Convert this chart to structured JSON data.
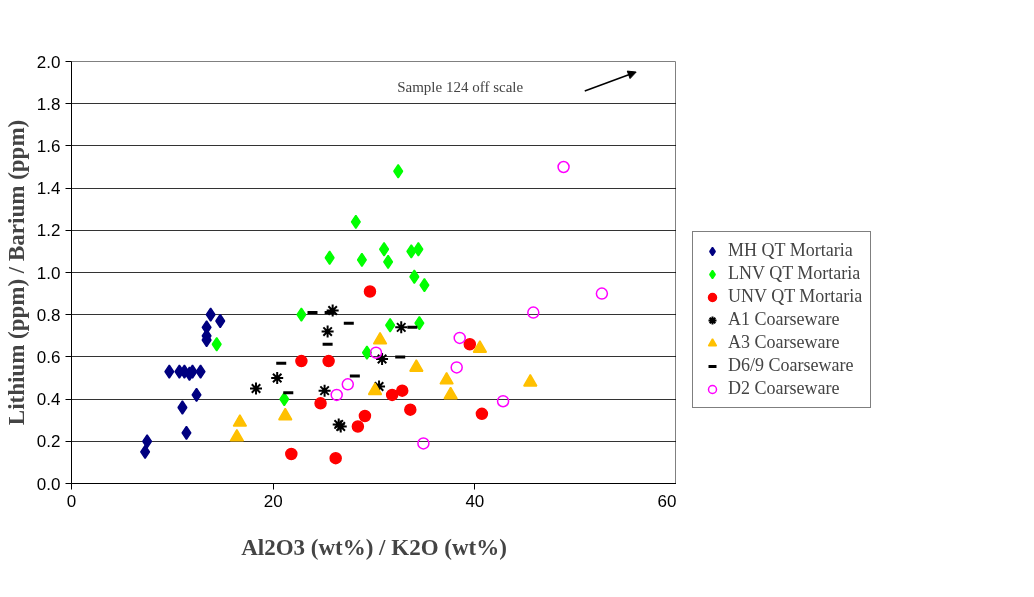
{
  "chart_data": {
    "type": "scatter",
    "xlabel": "Al2O3 (wt%) / K2O (wt%)",
    "ylabel": "Lithium (ppm) / Barium (ppm)",
    "xlim": [
      0,
      60
    ],
    "xticks": [
      0,
      20,
      40,
      60
    ],
    "ylim": [
      0,
      2.0
    ],
    "yticks": [
      {
        "value": 0,
        "label": "0.0"
      },
      {
        "value": 0.2,
        "label": "0.2"
      },
      {
        "value": 0.4,
        "label": "0.4"
      },
      {
        "value": 0.6,
        "label": "0.6"
      },
      {
        "value": 0.8,
        "label": "0.8"
      },
      {
        "value": 1.0,
        "label": "1.0"
      },
      {
        "value": 1.2,
        "label": "1.2"
      },
      {
        "value": 1.4,
        "label": "1.4"
      },
      {
        "value": 1.6,
        "label": "1.6"
      },
      {
        "value": 1.8,
        "label": "1.8"
      },
      {
        "value": 2.0,
        "label": "2.0"
      }
    ],
    "grid": "y",
    "legend": "right",
    "annotations": [
      "Sample 124 off scale"
    ],
    "series": [
      {
        "name": "MH QT Mortaria",
        "color": "#000080",
        "marker": "diamond",
        "x": [
          13.8,
          14.75,
          13.4,
          13.4,
          13.4,
          9.7,
          10.7,
          11.2,
          11.7,
          12.0,
          12.8,
          12.4,
          11.0,
          11.4,
          7.5,
          7.3
        ],
        "values": [
          0.8,
          0.77,
          0.74,
          0.7,
          0.68,
          0.53,
          0.53,
          0.53,
          0.52,
          0.53,
          0.53,
          0.42,
          0.36,
          0.24,
          0.2,
          0.15
        ]
      },
      {
        "name": "LNV QT Mortaria",
        "color": "#00ff00",
        "marker": "diamond",
        "x": [
          32.4,
          28.2,
          25.6,
          28.8,
          31.0,
          31.4,
          33.7,
          34.4,
          34.0,
          35.0,
          22.8,
          31.6,
          34.5,
          29.3,
          21.1,
          14.4
        ],
        "values": [
          1.48,
          1.24,
          1.07,
          1.06,
          1.11,
          1.05,
          1.1,
          1.11,
          0.98,
          0.94,
          0.8,
          0.75,
          0.76,
          0.62,
          0.4,
          0.66
        ]
      },
      {
        "name": "UNV QT Mortaria",
        "color": "#ff0000",
        "marker": "circle",
        "x": [
          29.6,
          22.8,
          25.5,
          24.7,
          21.8,
          26.2,
          29.1,
          28.4,
          31.8,
          32.8,
          33.6,
          39.5,
          40.7
        ],
        "values": [
          0.91,
          0.58,
          0.58,
          0.38,
          0.14,
          0.12,
          0.32,
          0.27,
          0.42,
          0.44,
          0.35,
          0.66,
          0.33
        ]
      },
      {
        "name": "A1 Coarseware",
        "color": "#000000",
        "marker": "cross",
        "x": [
          25.9,
          25.4,
          32.7,
          30.8,
          20.4,
          18.3,
          25.1,
          30.5,
          26.5,
          26.7
        ],
        "values": [
          0.82,
          0.72,
          0.74,
          0.59,
          0.5,
          0.45,
          0.44,
          0.46,
          0.28,
          0.27
        ]
      },
      {
        "name": "A3 Coarseware",
        "color": "#ffc000",
        "marker": "triangle",
        "x": [
          16.7,
          16.4,
          30.6,
          21.2,
          30.1,
          34.2,
          37.2,
          37.6,
          40.5,
          45.5
        ],
        "values": [
          0.29,
          0.22,
          0.68,
          0.32,
          0.44,
          0.55,
          0.49,
          0.42,
          0.64,
          0.48
        ]
      },
      {
        "name": "D6/9 Coarseware",
        "color": "#000000",
        "x": [
          23.9,
          25.6,
          27.5,
          33.8,
          25.4,
          20.8,
          32.6,
          28.1,
          21.5
        ],
        "values": [
          0.81,
          0.81,
          0.76,
          0.74,
          0.66,
          0.57,
          0.6,
          0.51,
          0.43
        ]
      },
      {
        "name": "D2 Coarseware",
        "color": "#ff00ff",
        "marker": "circle",
        "x": [
          48.8,
          52.6,
          45.8,
          38.5,
          38.2,
          42.8,
          30.2,
          27.4,
          26.3,
          34.9
        ],
        "values": [
          1.5,
          0.9,
          0.81,
          0.69,
          0.55,
          0.39,
          0.62,
          0.47,
          0.42,
          0.19
        ]
      }
    ]
  }
}
